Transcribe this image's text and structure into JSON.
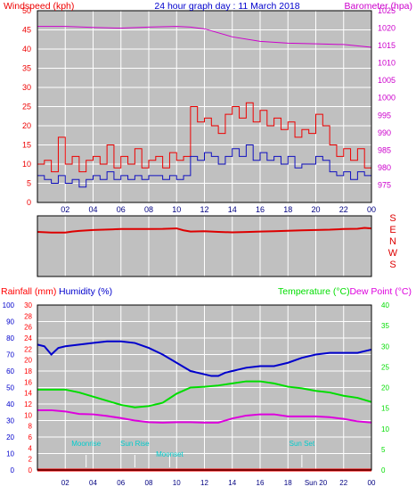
{
  "colors": {
    "background": "#ffffff",
    "plot_bg": "#c0c0c0",
    "grid": "#ffffff",
    "wind": "#ee0000",
    "wind_avg": "#1010c0",
    "barometer": "#cc00cc",
    "direction": "#dd0000",
    "humidity": "#0000cc",
    "temperature": "#00dd00",
    "dewpoint": "#dd00dd",
    "rainfall": "#ff0000",
    "annotation": "#00cccc",
    "title": "#0000cc"
  },
  "chart_data": [
    {
      "type": "line",
      "title": "24 hour graph day : 11 March 2018",
      "ylabel_left": "Windspeed (kph)",
      "ylabel_right": "Barometer (hpa)",
      "x_tick_labels": [
        "02",
        "04",
        "06",
        "08",
        "10",
        "12",
        "14",
        "16",
        "18",
        "20",
        "22",
        "00"
      ],
      "x_range_hours": [
        0,
        24
      ],
      "ylim_left": [
        0,
        50
      ],
      "yticks_left": [
        0,
        5,
        10,
        15,
        20,
        25,
        30,
        35,
        40,
        45,
        50
      ],
      "ylim_right": [
        970,
        1025
      ],
      "yticks_right": [
        975,
        980,
        985,
        990,
        995,
        1000,
        1005,
        1010,
        1015,
        1020,
        1025
      ],
      "grid": true,
      "series": [
        {
          "name": "Windspeed (kph)",
          "axis": "left",
          "style": "step",
          "x": [
            0,
            0.5,
            1,
            1.5,
            2,
            2.5,
            3,
            3.5,
            4,
            4.5,
            5,
            5.5,
            6,
            6.5,
            7,
            7.5,
            8,
            8.5,
            9,
            9.5,
            10,
            10.5,
            11,
            11.5,
            12,
            12.5,
            13,
            13.5,
            14,
            14.5,
            15,
            15.5,
            16,
            16.5,
            17,
            17.5,
            18,
            18.5,
            19,
            19.5,
            20,
            20.5,
            21,
            21.5,
            22,
            22.5,
            23,
            23.5,
            24
          ],
          "values": [
            10,
            11,
            8,
            17,
            10,
            12,
            8,
            11,
            12,
            10,
            15,
            9,
            12,
            10,
            14,
            9,
            11,
            12,
            9,
            13,
            11,
            12,
            25,
            21,
            22,
            20,
            18,
            23,
            25,
            22,
            26,
            21,
            24,
            20,
            22,
            19,
            21,
            17,
            19,
            18,
            23,
            20,
            15,
            12,
            14,
            11,
            14,
            9,
            14
          ]
        },
        {
          "name": "Average windspeed (kph)",
          "axis": "left",
          "style": "step",
          "x": [
            0,
            0.5,
            1,
            1.5,
            2,
            2.5,
            3,
            3.5,
            4,
            4.5,
            5,
            5.5,
            6,
            6.5,
            7,
            7.5,
            8,
            8.5,
            9,
            9.5,
            10,
            10.5,
            11,
            11.5,
            12,
            12.5,
            13,
            13.5,
            14,
            14.5,
            15,
            15.5,
            16,
            16.5,
            17,
            17.5,
            18,
            18.5,
            19,
            19.5,
            20,
            20.5,
            21,
            21.5,
            22,
            22.5,
            23,
            23.5,
            24
          ],
          "values": [
            7,
            6,
            5,
            7,
            5,
            6,
            4,
            6,
            7,
            6,
            8,
            6,
            7,
            6,
            7,
            6,
            7,
            7,
            6,
            7,
            6,
            7,
            12,
            11,
            13,
            12,
            10,
            12,
            14,
            12,
            15,
            11,
            13,
            11,
            12,
            10,
            12,
            9,
            10,
            10,
            12,
            11,
            8,
            7,
            8,
            6,
            8,
            7,
            10
          ]
        },
        {
          "name": "Barometer (hpa)",
          "axis": "right",
          "style": "line",
          "x": [
            0,
            2,
            4,
            6,
            8,
            10,
            11,
            12,
            14,
            16,
            18,
            20,
            22,
            24
          ],
          "values": [
            1020.5,
            1020.5,
            1020.2,
            1020.0,
            1020.3,
            1020.5,
            1020.3,
            1019.8,
            1017.5,
            1016.2,
            1015.7,
            1015.5,
            1015.3,
            1014.5
          ]
        }
      ]
    },
    {
      "type": "line",
      "title": "",
      "direction_labels": [
        "S",
        "E",
        "N",
        "W",
        "S"
      ],
      "x_range_hours": [
        0,
        24
      ],
      "series": [
        {
          "name": "Wind direction (deg)",
          "x": [
            0,
            1,
            2,
            2.5,
            3,
            4,
            5,
            6,
            7,
            8,
            9,
            10,
            10.5,
            11,
            12,
            13,
            14,
            15,
            16,
            17,
            18,
            19,
            20,
            21,
            22,
            23,
            23.5,
            24
          ],
          "values": [
            90,
            86,
            86,
            92,
            96,
            102,
            105,
            108,
            108,
            108,
            109,
            112,
            100,
            92,
            94,
            90,
            87,
            89,
            92,
            94,
            97,
            100,
            102,
            104,
            108,
            110,
            115,
            112
          ]
        }
      ]
    },
    {
      "type": "line",
      "title": "",
      "ylabel_left_outer": "Rainfall (mm)",
      "ylabel_left_inner": "Humidity (%)",
      "ylabel_right_outer": "Temperature (°C)",
      "ylabel_right_inner": "Dew Point (°C)",
      "x_tick_labels": [
        "02",
        "04",
        "06",
        "08",
        "10",
        "12",
        "14",
        "16",
        "18",
        "Sun 20",
        "22",
        "00"
      ],
      "x_range_hours": [
        0,
        24
      ],
      "ylim_humidity": [
        0,
        100
      ],
      "yticks_humidity": [
        0,
        10,
        20,
        30,
        40,
        50,
        60,
        70,
        80,
        90,
        100
      ],
      "ylim_rain": [
        0,
        30
      ],
      "yticks_rain": [
        0,
        2,
        4,
        6,
        8,
        10,
        12,
        14,
        16,
        18,
        20,
        22,
        24,
        26,
        28,
        30
      ],
      "ylim_temp": [
        0,
        40
      ],
      "yticks_temp": [
        0,
        5,
        10,
        15,
        20,
        25,
        30,
        35,
        40
      ],
      "grid": true,
      "annotations": [
        {
          "label": "Moonrise",
          "hour": 3.5
        },
        {
          "label": "Sun Rise",
          "hour": 7.0
        },
        {
          "label": "Moonset",
          "hour": 9.5
        },
        {
          "label": "Sun Set",
          "hour": 19.0
        }
      ],
      "series": [
        {
          "name": "Humidity (%)",
          "axis": "humidity",
          "x": [
            0,
            0.5,
            1,
            1.5,
            2,
            3,
            4,
            5,
            6,
            7,
            8,
            9,
            10,
            11,
            12,
            12.5,
            13,
            13.5,
            14,
            15,
            16,
            17,
            18,
            19,
            20,
            21,
            22,
            23,
            24
          ],
          "values": [
            76,
            75,
            70,
            74,
            75,
            76,
            77,
            78,
            78,
            77,
            74,
            70,
            65,
            60,
            58,
            57,
            57,
            59,
            60,
            62,
            63,
            63,
            65,
            68,
            70,
            71,
            71,
            71,
            73
          ]
        },
        {
          "name": "Temperature (°C)",
          "axis": "temp",
          "x": [
            0,
            1,
            2,
            3,
            4,
            5,
            6,
            7,
            8,
            9,
            10,
            11,
            12,
            13,
            14,
            15,
            16,
            17,
            18,
            19,
            20,
            21,
            22,
            23,
            24
          ],
          "values": [
            19.5,
            19.5,
            19.5,
            18.8,
            17.8,
            16.8,
            15.8,
            15.2,
            15.5,
            16.3,
            18.5,
            20.0,
            20.2,
            20.5,
            21.0,
            21.5,
            21.5,
            21.0,
            20.2,
            19.8,
            19.2,
            18.8,
            18.0,
            17.5,
            16.5
          ]
        },
        {
          "name": "Dew Point (°C)",
          "axis": "temp",
          "x": [
            0,
            1,
            2,
            3,
            4,
            5,
            6,
            7,
            8,
            9,
            10,
            11,
            12,
            13,
            14,
            15,
            16,
            17,
            18,
            19,
            20,
            21,
            22,
            23,
            24
          ],
          "values": [
            14.5,
            14.5,
            14.2,
            13.6,
            13.5,
            13.1,
            12.6,
            12.0,
            11.6,
            11.5,
            11.6,
            11.6,
            11.5,
            11.5,
            12.5,
            13.2,
            13.5,
            13.5,
            13.0,
            13.0,
            13.0,
            12.8,
            12.4,
            11.8,
            11.5
          ]
        },
        {
          "name": "Rainfall (mm)",
          "axis": "rain",
          "x": [
            0,
            24
          ],
          "values": [
            0,
            0
          ]
        }
      ]
    }
  ]
}
